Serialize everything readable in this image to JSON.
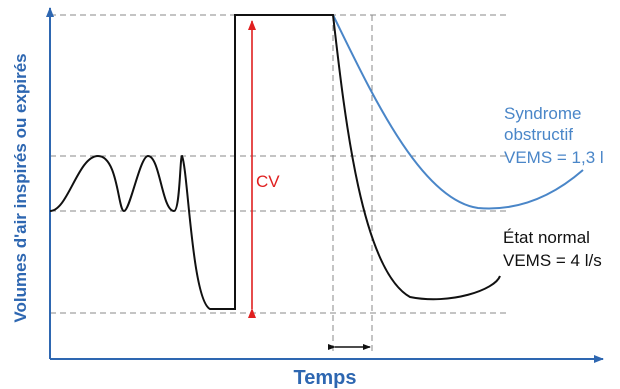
{
  "axes": {
    "y_label": "Volumes d'air inspirés ou expirés",
    "x_label": "Temps"
  },
  "annotations": {
    "cv": "CV",
    "obstructive": {
      "line1": "Syndrome",
      "line2": "obstructif",
      "line3": "VEMS = 1,3 l"
    },
    "normal": {
      "line1": "État normal",
      "line2": "VEMS = 4 l/s"
    }
  },
  "colors": {
    "axis": "#2e67b1",
    "normal_curve": "#111111",
    "obstructive_curve": "#4a86c8",
    "cv_arrow": "#e02020",
    "guide_lines": "#8a8a8a"
  }
}
